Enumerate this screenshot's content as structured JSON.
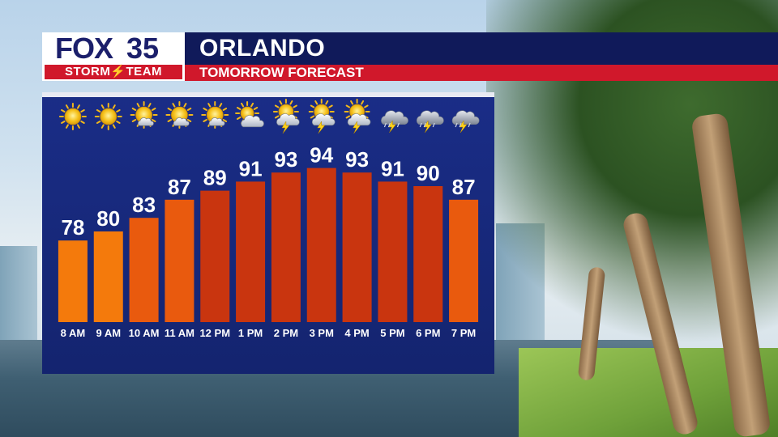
{
  "brand": {
    "logo_fox": "FOX",
    "logo_number": "35",
    "logo_team": "STORM⚡TEAM"
  },
  "header": {
    "title": "ORLANDO",
    "subtitle": "TOMORROW FORECAST"
  },
  "colors": {
    "navy": "#101a5a",
    "red": "#d0182b",
    "panel": "#1a2d87",
    "bar_light": "#f47a0c",
    "bar_mid": "#e95a0e",
    "bar_dark": "#c9350f"
  },
  "chart_data": {
    "type": "bar",
    "title": "",
    "xlabel": "",
    "ylabel": "",
    "categories": [
      "8 AM",
      "9 AM",
      "10 AM",
      "11 AM",
      "12 PM",
      "1 PM",
      "2 PM",
      "3 PM",
      "4 PM",
      "5 PM",
      "6 PM",
      "7 PM"
    ],
    "values": [
      78,
      80,
      83,
      87,
      89,
      91,
      93,
      94,
      93,
      91,
      90,
      87
    ],
    "ylim": [
      60,
      100
    ],
    "grid": false,
    "legend": "none",
    "icons": [
      "sun-icon",
      "sun-icon",
      "mostly-sunny-icon",
      "mostly-sunny-icon",
      "mostly-sunny-icon",
      "partly-cloudy-icon",
      "sun-cloud-thunder-icon",
      "sun-cloud-thunder-icon",
      "sun-cloud-thunder-icon",
      "thunderstorm-icon",
      "thunderstorm-icon",
      "thunderstorm-icon"
    ]
  }
}
